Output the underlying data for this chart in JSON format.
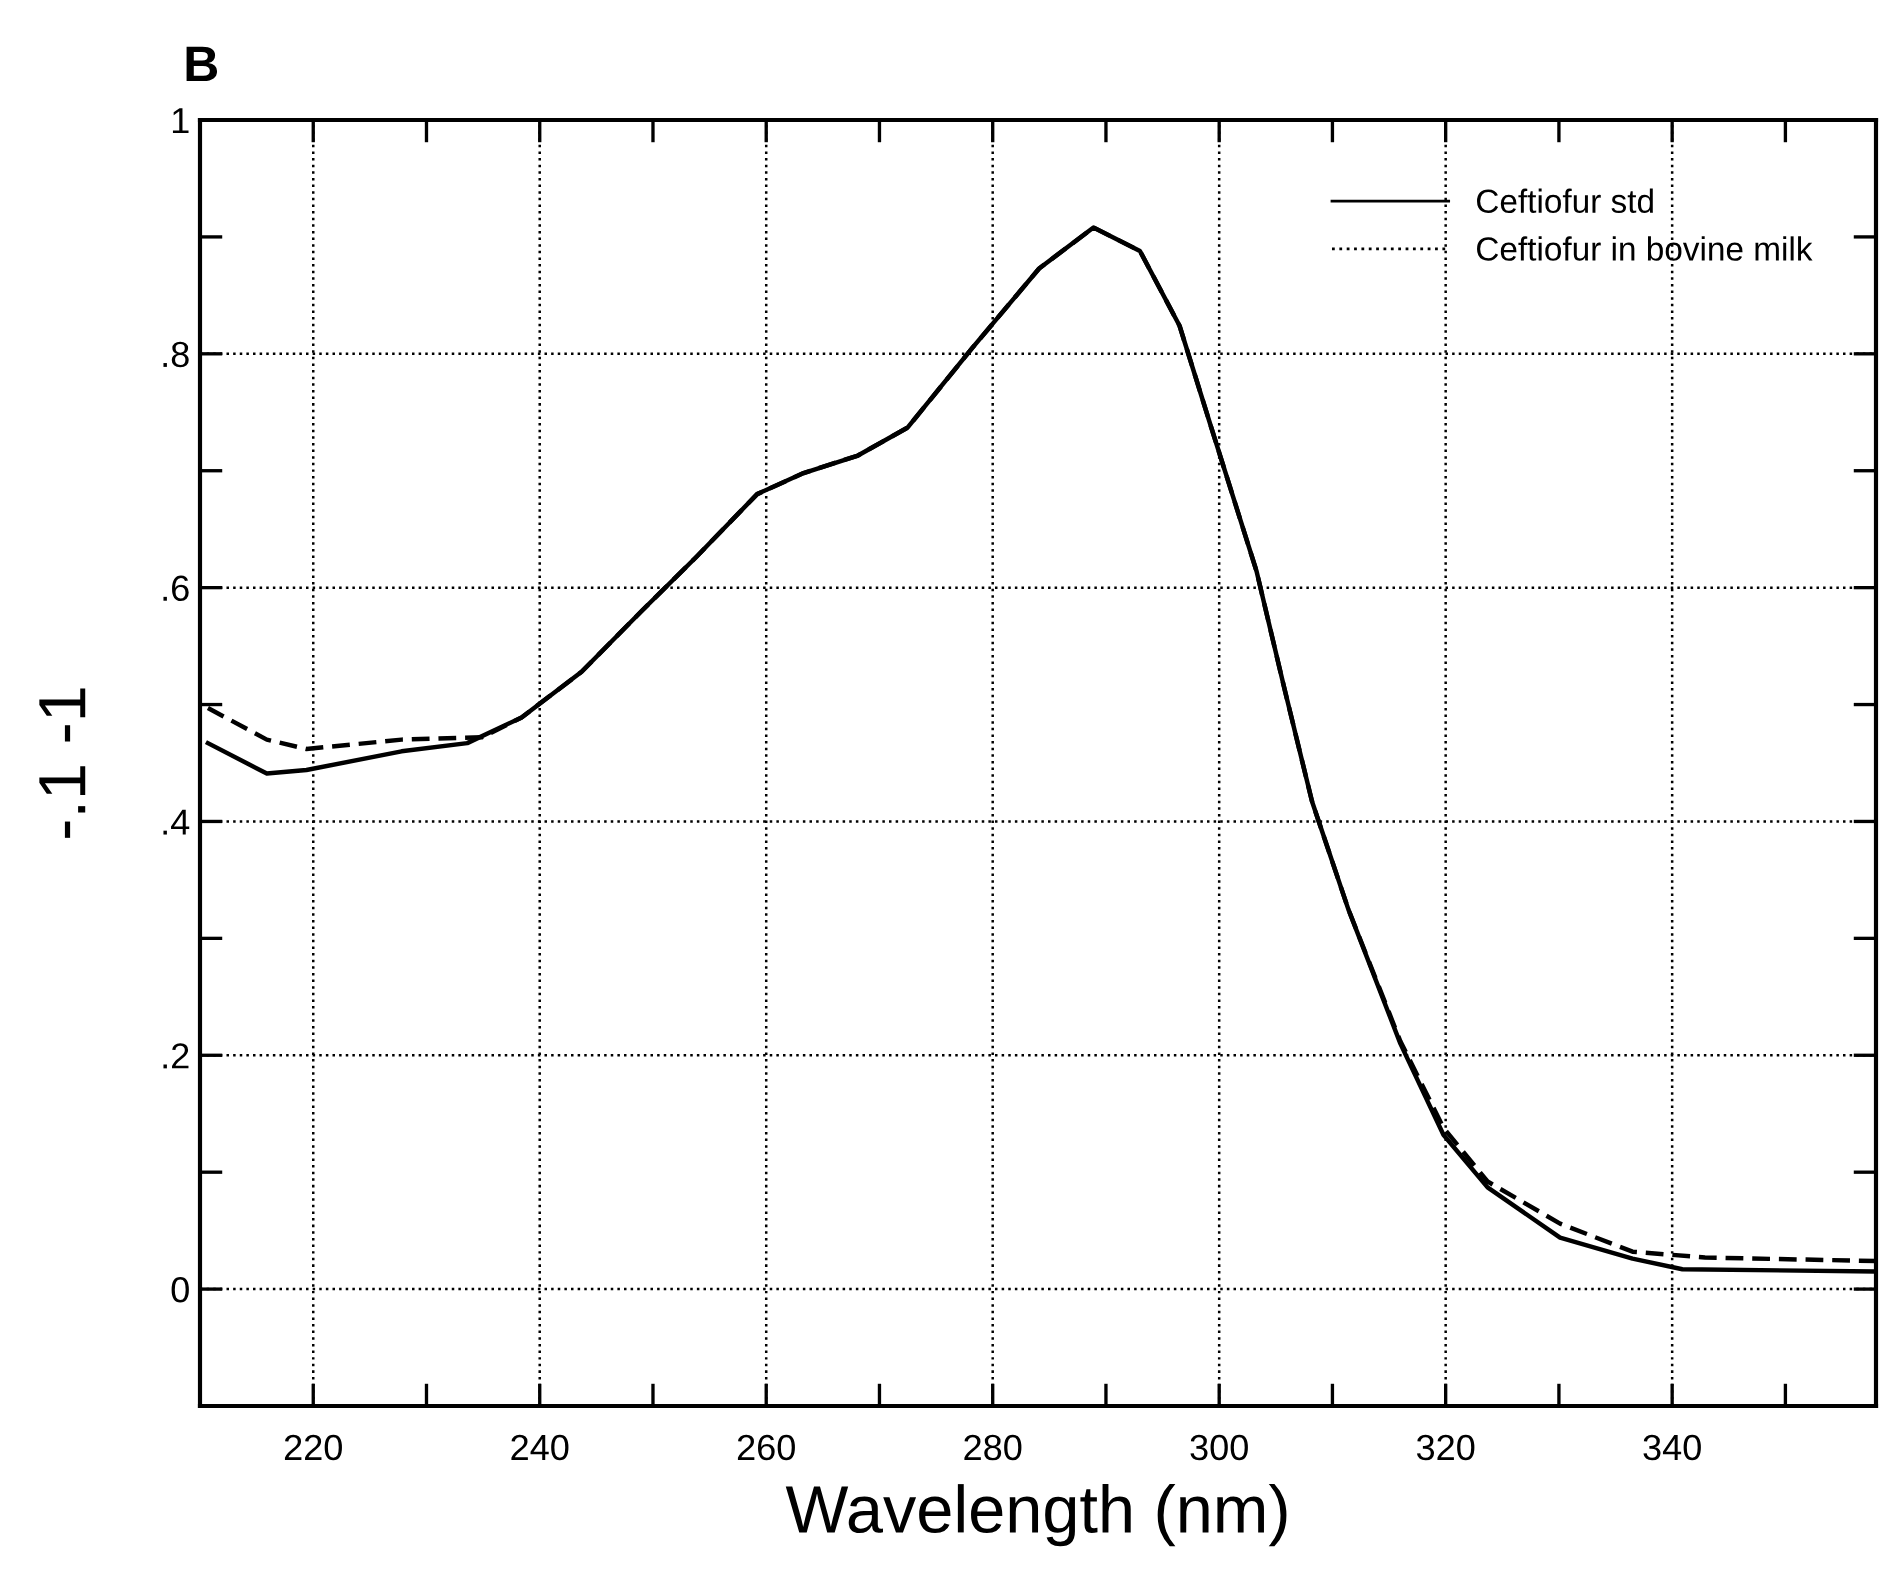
{
  "chart_data": {
    "type": "line",
    "title": "B",
    "xlabel": "Wavelength (nm)",
    "ylabel": "-.1 -1",
    "xlim": [
      210,
      358
    ],
    "ylim": [
      -0.1,
      1.0
    ],
    "xticks": [
      {
        "value": 210,
        "label": null
      },
      220,
      {
        "value": 230,
        "label": null
      },
      240,
      {
        "value": 250,
        "label": null
      },
      260,
      {
        "value": 270,
        "label": null
      },
      280,
      {
        "value": 290,
        "label": null
      },
      300,
      {
        "value": 310,
        "label": null
      },
      320,
      {
        "value": 330,
        "label": null
      },
      340,
      {
        "value": 350,
        "label": null
      }
    ],
    "yticks": [
      {
        "value": -0.1,
        "label": null
      },
      {
        "value": 0,
        "label": "0"
      },
      {
        "value": 0.1,
        "label": null
      },
      {
        "value": 0.2,
        "label": ".2"
      },
      {
        "value": 0.3,
        "label": null
      },
      {
        "value": 0.4,
        "label": ".4"
      },
      {
        "value": 0.5,
        "label": null
      },
      {
        "value": 0.6,
        "label": ".6"
      },
      {
        "value": 0.7,
        "label": null
      },
      {
        "value": 0.8,
        "label": ".8"
      },
      {
        "value": 0.9,
        "label": null
      },
      {
        "value": 1.0,
        "label": "1"
      }
    ],
    "grid": true,
    "legend": "top right",
    "series": [
      {
        "name": "Ceftiofur std",
        "color": "#000000",
        "line_style": "solid",
        "x": [
          210.7,
          215.9,
          219.4,
          227.8,
          233.6,
          238.4,
          243.7,
          249,
          253.8,
          259.2,
          263.3,
          268.1,
          272.5,
          278.2,
          284.1,
          288.9,
          293,
          296.5,
          299.3,
          303.3,
          305.7,
          308.2,
          311.4,
          316,
          319.8,
          323.7,
          330.1,
          336.5,
          340.9,
          358
        ],
        "values": [
          0.467,
          0.441,
          0.444,
          0.46,
          0.467,
          0.489,
          0.528,
          0.58,
          0.626,
          0.68,
          0.698,
          0.713,
          0.737,
          0.805,
          0.873,
          0.908,
          0.888,
          0.824,
          0.737,
          0.614,
          0.516,
          0.417,
          0.325,
          0.21,
          0.132,
          0.087,
          0.044,
          0.026,
          0.017,
          0.015
        ]
      },
      {
        "name": "Ceftiofur in bovine milk",
        "color": "#000000",
        "line_style": "dashed",
        "x": [
          210.7,
          215.9,
          219.4,
          227.8,
          234.9,
          238.4,
          243.7,
          249,
          253.8,
          259.2,
          263.3,
          268.1,
          272.5,
          278.2,
          284.1,
          288.9,
          293,
          296.5,
          299.3,
          303.3,
          305.7,
          308.2,
          311.4,
          316,
          319.8,
          323.7,
          330.1,
          336.5,
          342.9,
          358
        ],
        "values": [
          0.497,
          0.47,
          0.462,
          0.47,
          0.472,
          0.489,
          0.528,
          0.58,
          0.626,
          0.68,
          0.698,
          0.713,
          0.737,
          0.805,
          0.873,
          0.908,
          0.888,
          0.824,
          0.737,
          0.614,
          0.516,
          0.417,
          0.325,
          0.212,
          0.138,
          0.092,
          0.056,
          0.032,
          0.027,
          0.024
        ]
      }
    ]
  }
}
